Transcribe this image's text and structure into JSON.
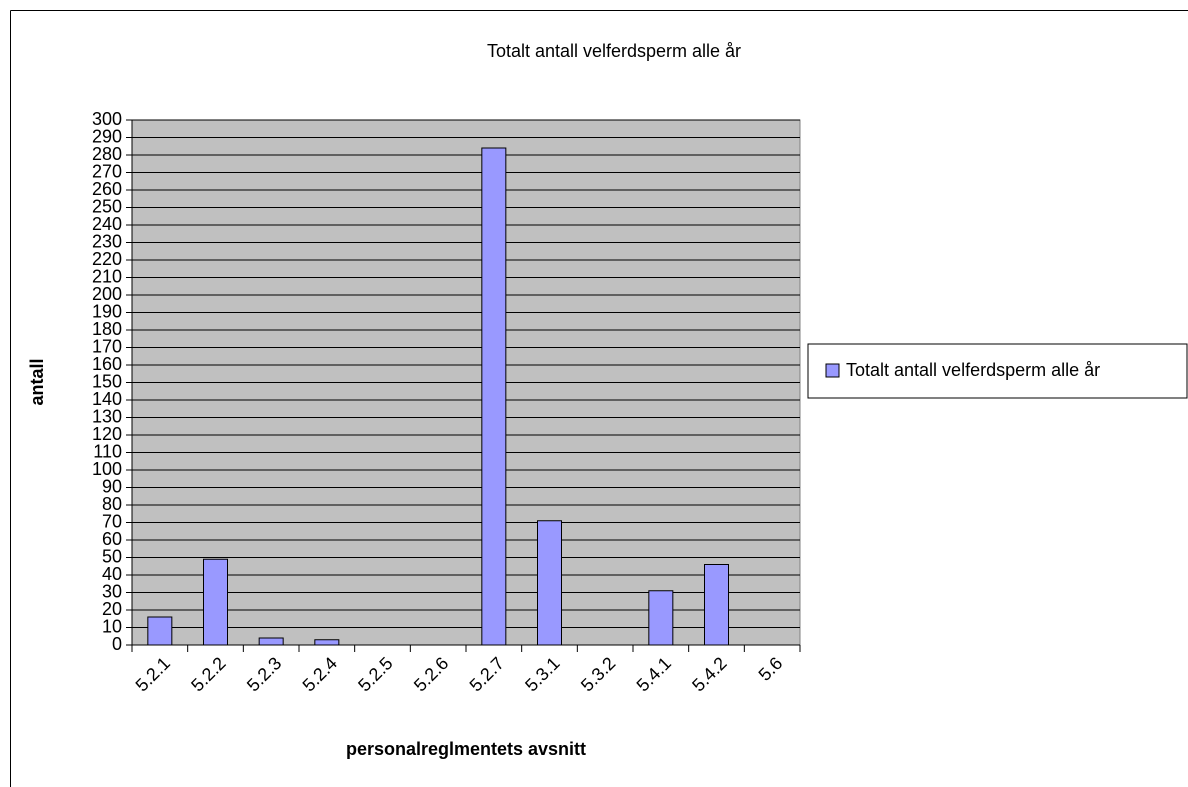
{
  "chart_data": {
    "type": "bar",
    "title": "Totalt antall velferdsperm alle år",
    "x_label": "personalreglmentets avsnitt",
    "y_label": "antall",
    "categories": [
      "5.2.1",
      "5.2.2",
      "5.2.3",
      "5.2.4",
      "5.2.5",
      "5.2.6",
      "5.2.7",
      "5.3.1",
      "5.3.2",
      "5.4.1",
      "5.4.2",
      "5.6"
    ],
    "series": [
      {
        "name": "Totalt antall velferdsperm alle år",
        "color": "#9999ff",
        "values": [
          16,
          49,
          4,
          3,
          0,
          0,
          284,
          71,
          0,
          31,
          46,
          0
        ]
      }
    ],
    "ylim": [
      0,
      300
    ],
    "yticks": [
      0,
      10,
      20,
      30,
      40,
      50,
      60,
      70,
      80,
      90,
      100,
      110,
      120,
      130,
      140,
      150,
      160,
      170,
      180,
      190,
      200,
      210,
      220,
      230,
      240,
      250,
      260,
      270,
      280,
      290,
      300
    ],
    "grid": true,
    "legend": "right"
  }
}
